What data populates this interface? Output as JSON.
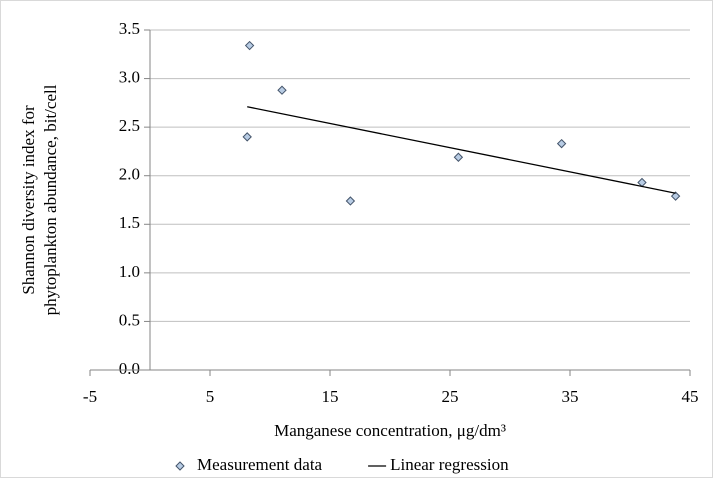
{
  "chart_data": {
    "type": "scatter",
    "xlabel": "Manganese concentration, μg/dm³",
    "ylabel": [
      "Shannon diversity index for",
      "phytoplankton abundance, bit/cell"
    ],
    "xlim": [
      -5,
      45
    ],
    "xticks": [
      -5,
      5,
      15,
      25,
      35,
      45
    ],
    "ylim": [
      0,
      3.5
    ],
    "yticks": [
      {
        "value": 0,
        "label": "0.0"
      },
      {
        "value": 0.5,
        "label": "0.5"
      },
      {
        "value": 1,
        "label": "1.0"
      },
      {
        "value": 1.5,
        "label": "1.5"
      },
      {
        "value": 2,
        "label": "2.0"
      },
      {
        "value": 2.5,
        "label": "2.5"
      },
      {
        "value": 3,
        "label": "3.0"
      },
      {
        "value": 3.5,
        "label": "3.5"
      }
    ],
    "grid": true,
    "legend": "bottom",
    "series": [
      {
        "name": "Measurement data",
        "type": "scatter",
        "color": "#b8cce4",
        "x": [
          8.1,
          8.3,
          11.0,
          16.7,
          25.7,
          34.3,
          41.0,
          43.8
        ],
        "values": [
          2.4,
          3.34,
          2.88,
          1.74,
          2.19,
          2.33,
          1.93,
          1.79
        ]
      },
      {
        "name": "Linear regression",
        "type": "line",
        "color": "#000000",
        "x": [
          8.1,
          43.8
        ],
        "values": [
          2.71,
          1.82
        ]
      }
    ]
  }
}
